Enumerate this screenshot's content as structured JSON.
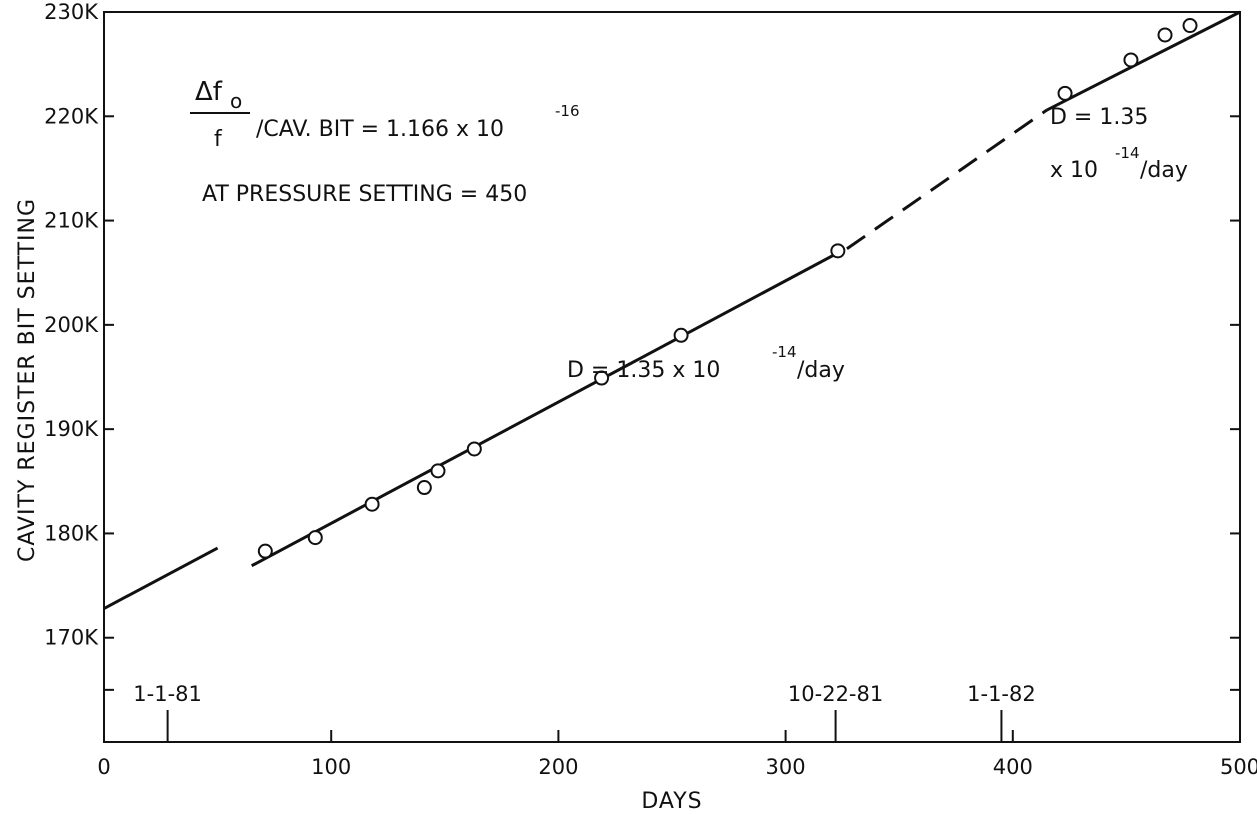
{
  "chart_data": {
    "type": "scatter",
    "xlabel": "DAYS",
    "ylabel": "CAVITY REGISTER BIT SETTING",
    "xlim": [
      0,
      500
    ],
    "ylim": [
      160000,
      230000
    ],
    "x_ticks": [
      0,
      100,
      200,
      300,
      400,
      500
    ],
    "y_ticks": [
      {
        "value": 170000,
        "label": "170K"
      },
      {
        "value": 180000,
        "label": "180K"
      },
      {
        "value": 190000,
        "label": "190K"
      },
      {
        "value": 200000,
        "label": "200K"
      },
      {
        "value": 210000,
        "label": "210K"
      },
      {
        "value": 220000,
        "label": "220K"
      },
      {
        "value": 230000,
        "label": "230K"
      }
    ],
    "date_markers": [
      {
        "label": "1-1-81",
        "x": 28
      },
      {
        "label": "10-22-81",
        "x": 322
      },
      {
        "label": "1-1-82",
        "x": 395
      }
    ],
    "points": [
      {
        "x": 71,
        "y": 178300
      },
      {
        "x": 93,
        "y": 179600
      },
      {
        "x": 118,
        "y": 182800
      },
      {
        "x": 141,
        "y": 184400
      },
      {
        "x": 147,
        "y": 186000
      },
      {
        "x": 163,
        "y": 188100
      },
      {
        "x": 219,
        "y": 194900
      },
      {
        "x": 254,
        "y": 199000
      },
      {
        "x": 323,
        "y": 207100
      },
      {
        "x": 423,
        "y": 222200
      },
      {
        "x": 452,
        "y": 225400
      },
      {
        "x": 467,
        "y": 227800
      },
      {
        "x": 478,
        "y": 228700
      }
    ],
    "lines": [
      {
        "style": "solid",
        "points": [
          [
            0,
            172800
          ],
          [
            50,
            178600
          ]
        ]
      },
      {
        "style": "solid",
        "points": [
          [
            65,
            176900
          ],
          [
            323,
            206900
          ]
        ]
      },
      {
        "style": "dashed",
        "points": [
          [
            327,
            207300
          ],
          [
            415,
            220600
          ]
        ]
      },
      {
        "style": "solid",
        "points": [
          [
            415,
            220600
          ],
          [
            500,
            230000
          ]
        ]
      }
    ],
    "annotations": {
      "formula": {
        "numerator": "Δf",
        "numerator_sub": "o",
        "denominator": "f",
        "text": "/CAV. BIT = 1.166 x 10",
        "exponent": "-16"
      },
      "pressure": "AT PRESSURE SETTING = 450",
      "drift_mid": {
        "text": "D = 1.35 x 10",
        "exponent": "-14",
        "unit": "/day"
      },
      "drift_right": {
        "line1": "D = 1.35",
        "line2_prefix": "x 10",
        "exponent": "-14",
        "unit": "/day"
      }
    }
  }
}
